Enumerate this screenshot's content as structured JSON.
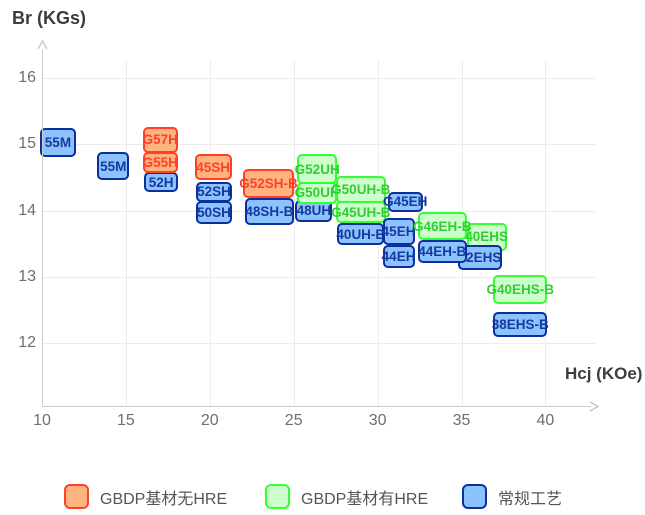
{
  "axis_titles": {
    "y": "Br (KGs)",
    "x": "Hcj (KOe)"
  },
  "legend": {
    "items": [
      {
        "label": "GBDP基材无HRE",
        "series": "gbdp_no_hre"
      },
      {
        "label": "GBDP基材有HRE",
        "series": "gbdp_with_hre"
      },
      {
        "label": "常规工艺",
        "series": "conventional"
      }
    ]
  },
  "series_styles": {
    "gbdp_no_hre": {
      "fill": "#FFB380",
      "stroke": "#FF4026",
      "text": "#FF4026"
    },
    "gbdp_with_hre": {
      "fill": "#CCFFCC",
      "stroke": "#33FF33",
      "text": "#33CC33"
    },
    "conventional": {
      "fill": "#8CC3FF",
      "stroke": "#0D2F9E",
      "text": "#16399F"
    }
  },
  "chart_data": {
    "type": "scatter",
    "subtype": "labeled-range-boxes",
    "title": "",
    "xlabel": "Hcj (KOe)",
    "ylabel": "Br (KGs)",
    "xticks": [
      10,
      15,
      20,
      25,
      30,
      35,
      40
    ],
    "yticks": [
      16,
      15,
      14,
      13,
      12
    ],
    "xlim": [
      10,
      43
    ],
    "ylim": [
      11.4,
      16.5
    ],
    "grid": true,
    "legend_position": "bottom",
    "boxes": [
      {
        "label": "55M",
        "series": "conventional",
        "hcj": [
          9.9,
          12.0
        ],
        "br": [
          14.81,
          15.25
        ]
      },
      {
        "label": "55M",
        "series": "conventional",
        "hcj": [
          13.3,
          15.2
        ],
        "br": [
          14.46,
          14.88
        ]
      },
      {
        "label": "52H",
        "series": "conventional",
        "hcj": [
          16.1,
          18.1
        ],
        "br": [
          14.28,
          14.58
        ]
      },
      {
        "label": "G57H",
        "series": "gbdp_no_hre",
        "hcj": [
          16.0,
          18.1
        ],
        "br": [
          14.87,
          15.26
        ]
      },
      {
        "label": "G55H",
        "series": "gbdp_no_hre",
        "hcj": [
          16.0,
          18.1
        ],
        "br": [
          14.57,
          14.88
        ]
      },
      {
        "label": "52SH",
        "series": "conventional",
        "hcj": [
          19.2,
          21.3
        ],
        "br": [
          14.13,
          14.43
        ]
      },
      {
        "label": "50SH",
        "series": "conventional",
        "hcj": [
          19.2,
          21.3
        ],
        "br": [
          13.8,
          14.14
        ]
      },
      {
        "label": "45SH",
        "series": "gbdp_no_hre",
        "hcj": [
          19.1,
          21.3
        ],
        "br": [
          14.46,
          14.85
        ]
      },
      {
        "label": "48SH-B",
        "series": "conventional",
        "hcj": [
          22.1,
          25.0
        ],
        "br": [
          13.78,
          14.19
        ]
      },
      {
        "label": "G52SH-B",
        "series": "gbdp_no_hre",
        "hcj": [
          22.0,
          25.0
        ],
        "br": [
          14.19,
          14.63
        ]
      },
      {
        "label": "48UH",
        "series": "conventional",
        "hcj": [
          25.1,
          27.3
        ],
        "br": [
          13.83,
          14.16
        ]
      },
      {
        "label": "G52UH",
        "series": "gbdp_with_hre",
        "hcj": [
          25.2,
          27.6
        ],
        "br": [
          14.4,
          14.85
        ]
      },
      {
        "label": "G50UH",
        "series": "gbdp_with_hre",
        "hcj": [
          25.2,
          27.6
        ],
        "br": [
          14.1,
          14.43
        ]
      },
      {
        "label": "40UH-B",
        "series": "conventional",
        "hcj": [
          27.6,
          30.4
        ],
        "br": [
          13.48,
          13.81
        ]
      },
      {
        "label": "G50UH-B",
        "series": "gbdp_with_hre",
        "hcj": [
          27.5,
          30.5
        ],
        "br": [
          14.11,
          14.52
        ]
      },
      {
        "label": "G45UH-B",
        "series": "gbdp_with_hre",
        "hcj": [
          27.5,
          30.5
        ],
        "br": [
          13.81,
          14.14
        ]
      },
      {
        "label": "G45EH",
        "series": "conventional",
        "hcj": [
          30.6,
          32.7
        ],
        "br": [
          13.98,
          14.28
        ]
      },
      {
        "label": "44EH",
        "series": "conventional",
        "hcj": [
          30.3,
          32.2
        ],
        "br": [
          13.13,
          13.48
        ]
      },
      {
        "label": "45EH",
        "series": "conventional",
        "hcj": [
          30.3,
          32.2
        ],
        "br": [
          13.48,
          13.89
        ]
      },
      {
        "label": "40EHS",
        "series": "gbdp_with_hre",
        "hcj": [
          35.3,
          37.7
        ],
        "br": [
          13.39,
          13.81
        ]
      },
      {
        "label": "42EHS",
        "series": "conventional",
        "hcj": [
          34.8,
          37.4
        ],
        "br": [
          13.1,
          13.48
        ]
      },
      {
        "label": "44EH-B",
        "series": "conventional",
        "hcj": [
          32.4,
          35.3
        ],
        "br": [
          13.21,
          13.55
        ]
      },
      {
        "label": "G46EH-B",
        "series": "gbdp_with_hre",
        "hcj": [
          32.4,
          35.3
        ],
        "br": [
          13.55,
          13.98
        ]
      },
      {
        "label": "G40EHS-B",
        "series": "gbdp_with_hre",
        "hcj": [
          36.9,
          40.1
        ],
        "br": [
          12.59,
          13.03
        ]
      },
      {
        "label": "38EHS-B",
        "series": "conventional",
        "hcj": [
          36.9,
          40.1
        ],
        "br": [
          12.09,
          12.47
        ]
      }
    ]
  }
}
